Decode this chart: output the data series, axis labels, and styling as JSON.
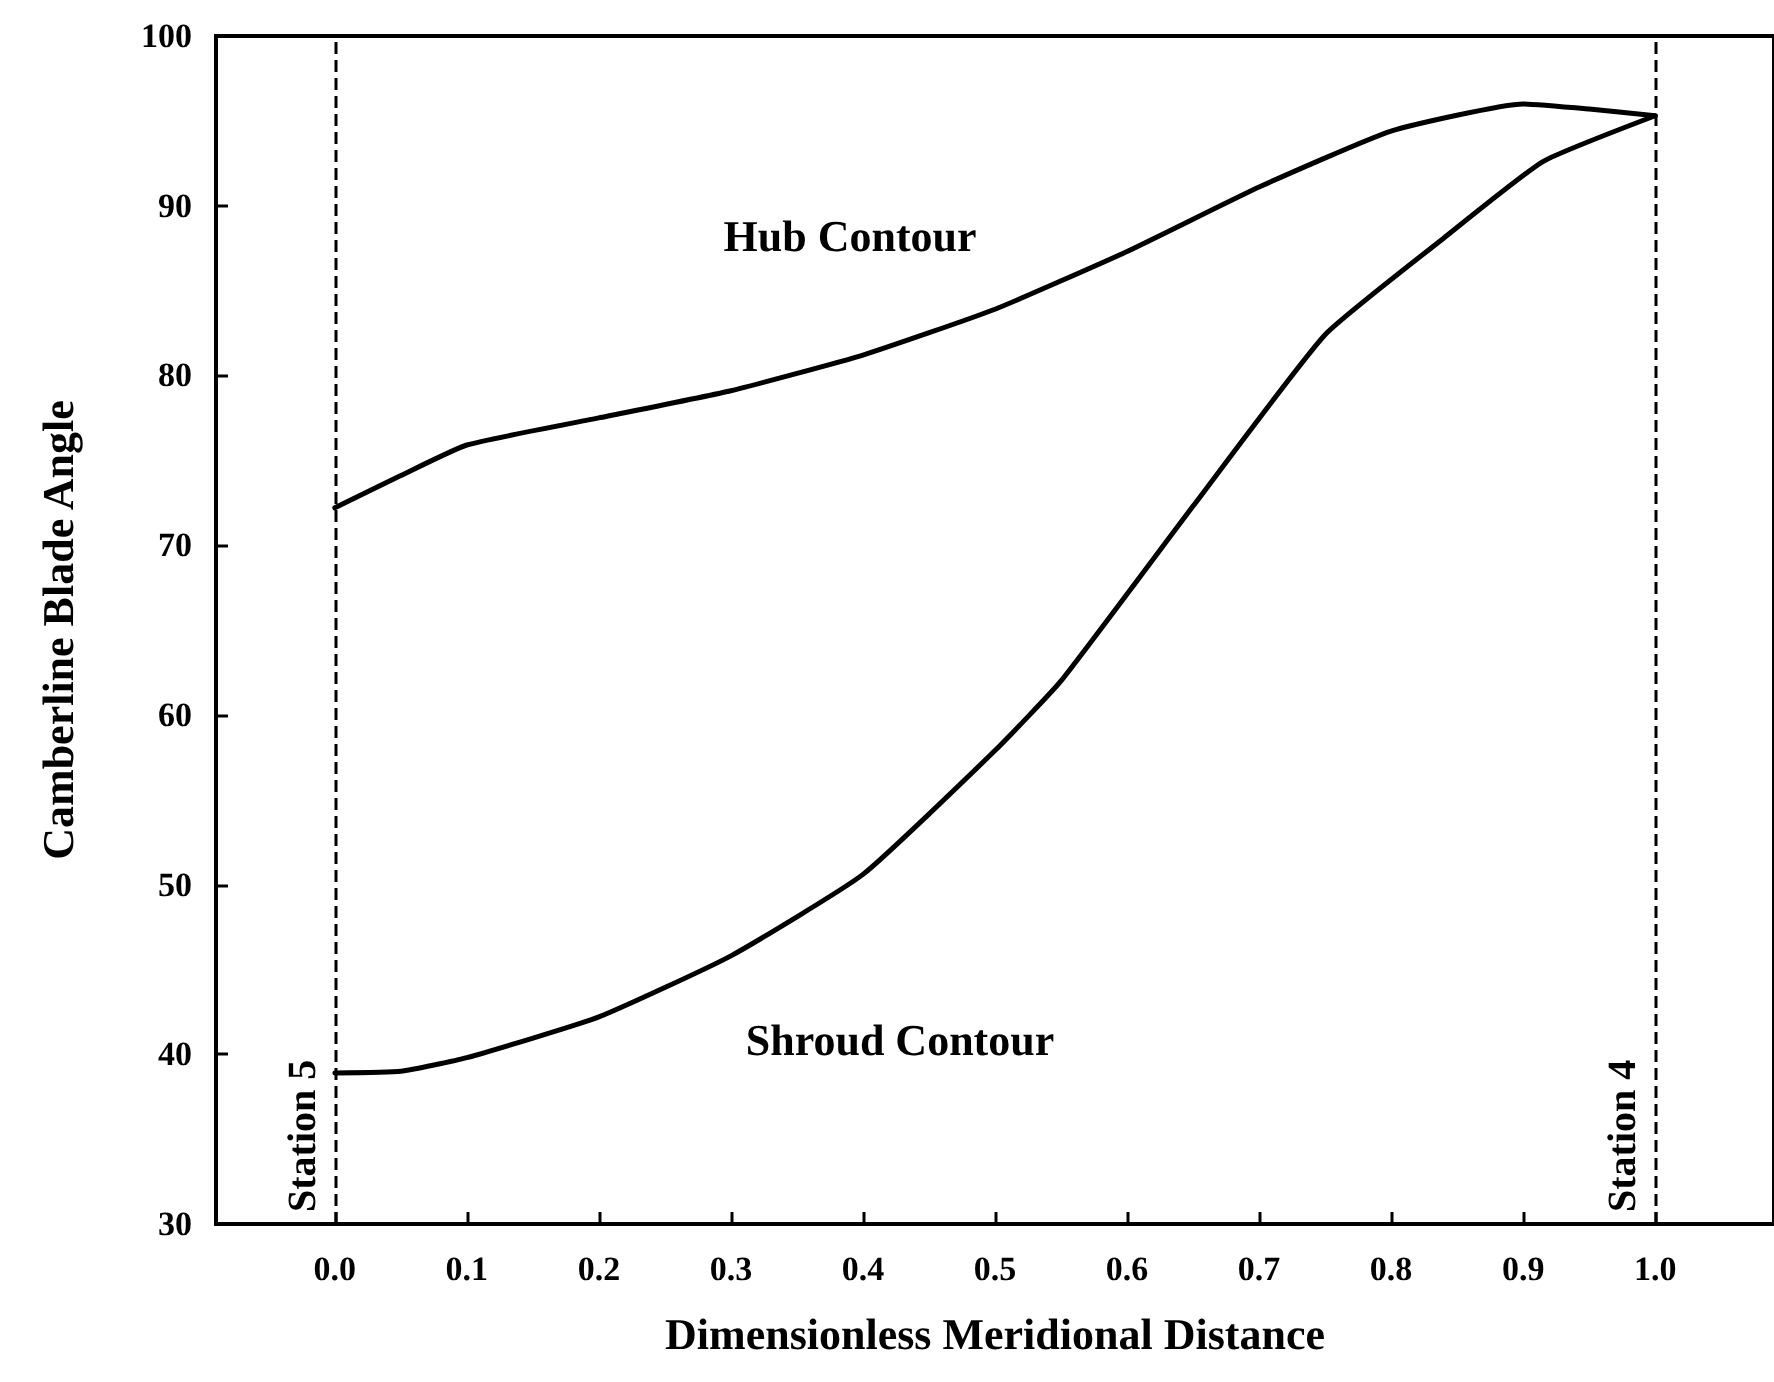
{
  "chart_data": {
    "type": "line",
    "xlabel": "Dimensionless Meridional Distance",
    "ylabel": "Camberline Blade Angle",
    "xlim": [
      -0.09,
      1.09
    ],
    "xticks": [
      {
        "value": 0,
        "label": "0.0"
      },
      0.1,
      0.2,
      0.3,
      0.4,
      0.5,
      0.6,
      0.7,
      0.8,
      0.9,
      {
        "value": 1,
        "label": "1.0"
      }
    ],
    "ylim": [
      30,
      100
    ],
    "yticks": [
      30,
      40,
      50,
      60,
      70,
      80,
      90,
      100
    ],
    "grid": false,
    "marker": "none",
    "line_style": "solid",
    "series": [
      {
        "color": "#000000",
        "x": [
          0,
          0.05,
          0.1,
          0.2,
          0.3,
          0.4,
          0.5,
          0.6,
          0.7,
          0.8,
          0.9,
          0.95,
          1
        ],
        "values": [
          72.2,
          74.1,
          75.9,
          77.5,
          79.1,
          81.2,
          83.9,
          87.3,
          91.1,
          94.4,
          96,
          95.7,
          95.3
        ]
      },
      {
        "color": "#000000",
        "x": [
          0,
          0.05,
          0.1,
          0.2,
          0.3,
          0.4,
          0.5,
          0.55,
          0.65,
          0.75,
          0.84,
          0.915,
          1
        ],
        "values": [
          38.9,
          39,
          39.8,
          42.2,
          45.8,
          50.6,
          57.9,
          62,
          72.3,
          82.4,
          88.1,
          92.6,
          95.3
        ]
      }
    ],
    "ref_lines": [
      {
        "axis": "x",
        "value": 0,
        "label": "Station 5",
        "line_style": "dashed",
        "color": "#000000"
      },
      {
        "axis": "x",
        "value": 1,
        "label": "Station 4",
        "line_style": "dashed",
        "color": "#000000"
      }
    ],
    "annotations": [
      "Hub Contour",
      "Shroud Contour"
    ]
  }
}
